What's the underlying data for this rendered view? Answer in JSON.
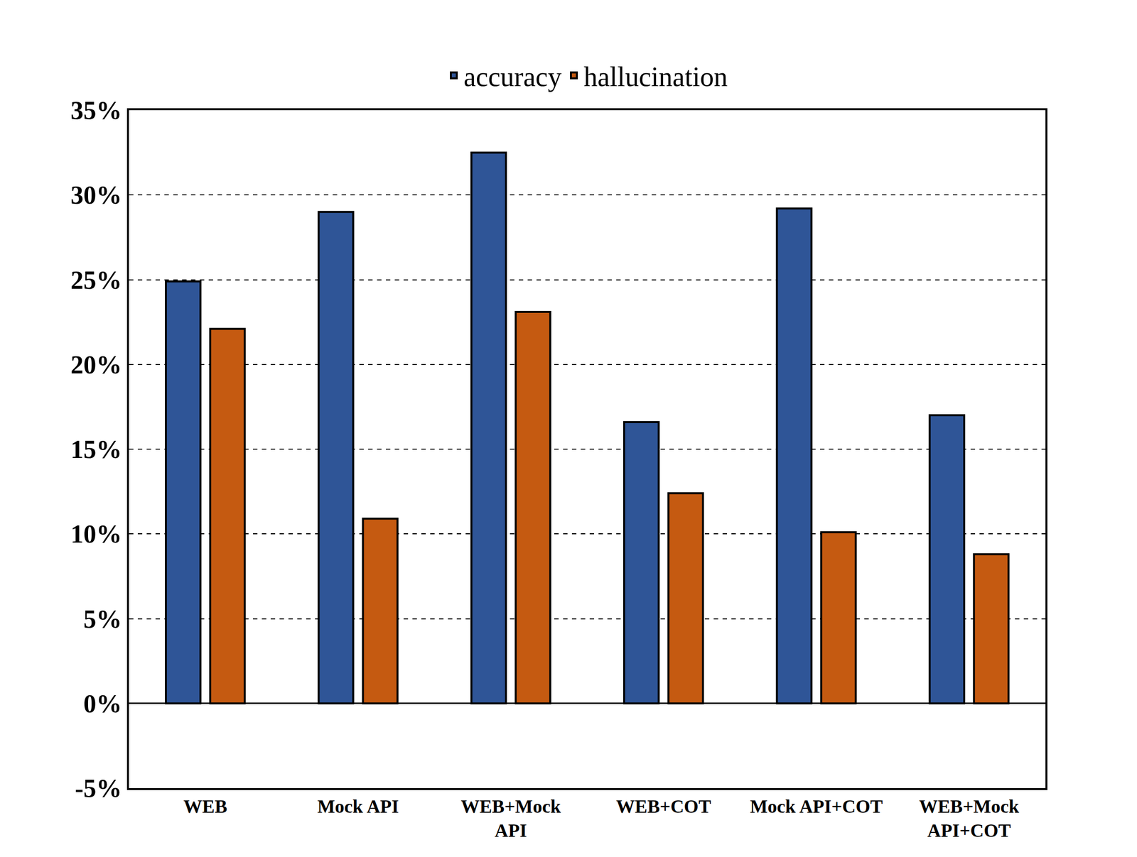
{
  "chart_data": {
    "type": "bar",
    "categories": [
      "WEB",
      "Mock API",
      "WEB+Mock\nAPI",
      "WEB+COT",
      "Mock API+COT",
      "WEB+Mock\nAPI+COT"
    ],
    "series": [
      {
        "name": "accuracy",
        "color": "#2f5597",
        "values": [
          24.9,
          29.0,
          32.5,
          16.6,
          29.2,
          17.0
        ]
      },
      {
        "name": "hallucination",
        "color": "#c55a11",
        "values": [
          22.1,
          10.9,
          23.1,
          12.4,
          10.1,
          8.8
        ]
      }
    ],
    "ylim": [
      -5,
      35
    ],
    "yticks": [
      {
        "value": -5,
        "label": "-5%"
      },
      {
        "value": 0,
        "label": "0%"
      },
      {
        "value": 5,
        "label": "5%"
      },
      {
        "value": 10,
        "label": "10%"
      },
      {
        "value": 15,
        "label": "15%"
      },
      {
        "value": 20,
        "label": "20%"
      },
      {
        "value": 25,
        "label": "25%"
      },
      {
        "value": 30,
        "label": "30%"
      },
      {
        "value": 35,
        "label": "35%"
      }
    ],
    "grid": true,
    "legend": "top"
  }
}
